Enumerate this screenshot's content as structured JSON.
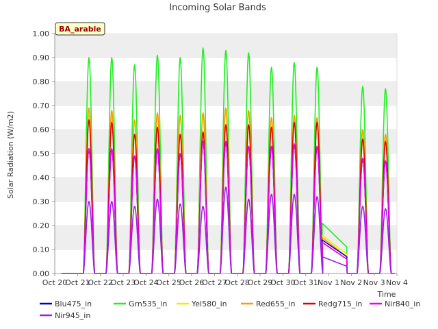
{
  "chart_data": {
    "type": "line",
    "title": "Incoming Solar Bands",
    "ylabel": "Solar Radiation (W/m2)",
    "xlabel": "Time",
    "station_badge": "BA_arable",
    "ylim": [
      0,
      1.0
    ],
    "yticks": [
      "0.00",
      "0.10",
      "0.20",
      "0.30",
      "0.40",
      "0.50",
      "0.60",
      "0.70",
      "0.80",
      "0.90",
      "1.00"
    ],
    "xticks": [
      "Oct 20",
      "Oct 21",
      "Oct 22",
      "Oct 23",
      "Oct 24",
      "Oct 25",
      "Oct 26",
      "Oct 27",
      "Oct 28",
      "Oct 29",
      "Oct 30",
      "Oct 31",
      "Nov 1",
      "Nov 2",
      "Nov 3",
      "Nov 4"
    ],
    "xlim_days": [
      0,
      15
    ],
    "grid": "horizontal bands",
    "legend_placement": "bottom",
    "days": [
      {
        "day": "Oct 21",
        "peak": {
          "Blu475_in": 0.52,
          "Grn535_in": 0.9,
          "Yel580_in": 0.66,
          "Red655_in": 0.69,
          "Redg715_in": 0.64,
          "Nir840_in": 0.52,
          "Nir945_in": 0.3
        }
      },
      {
        "day": "Oct 22",
        "peak": {
          "Blu475_in": 0.52,
          "Grn535_in": 0.9,
          "Yel580_in": 0.66,
          "Red655_in": 0.68,
          "Redg715_in": 0.63,
          "Nir840_in": 0.52,
          "Nir945_in": 0.3
        }
      },
      {
        "day": "Oct 23",
        "peak": {
          "Blu475_in": 0.49,
          "Grn535_in": 0.87,
          "Yel580_in": 0.63,
          "Red655_in": 0.64,
          "Redg715_in": 0.58,
          "Nir840_in": 0.49,
          "Nir945_in": 0.28
        }
      },
      {
        "day": "Oct 24",
        "peak": {
          "Blu475_in": 0.52,
          "Grn535_in": 0.91,
          "Yel580_in": 0.66,
          "Red655_in": 0.67,
          "Redg715_in": 0.61,
          "Nir840_in": 0.52,
          "Nir945_in": 0.31
        }
      },
      {
        "day": "Oct 25",
        "peak": {
          "Blu475_in": 0.5,
          "Grn535_in": 0.9,
          "Yel580_in": 0.65,
          "Red655_in": 0.66,
          "Redg715_in": 0.58,
          "Nir840_in": 0.5,
          "Nir945_in": 0.29
        }
      },
      {
        "day": "Oct 26",
        "peak": {
          "Blu475_in": 0.55,
          "Grn535_in": 0.94,
          "Yel580_in": 0.66,
          "Red655_in": 0.67,
          "Redg715_in": 0.59,
          "Nir840_in": 0.55,
          "Nir945_in": 0.28
        }
      },
      {
        "day": "Oct 27",
        "peak": {
          "Blu475_in": 0.55,
          "Grn535_in": 0.93,
          "Yel580_in": 0.67,
          "Red655_in": 0.69,
          "Redg715_in": 0.62,
          "Nir840_in": 0.55,
          "Nir945_in": 0.36
        }
      },
      {
        "day": "Oct 28",
        "peak": {
          "Blu475_in": 0.53,
          "Grn535_in": 0.92,
          "Yel580_in": 0.67,
          "Red655_in": 0.68,
          "Redg715_in": 0.62,
          "Nir840_in": 0.53,
          "Nir945_in": 0.31
        }
      },
      {
        "day": "Oct 29",
        "peak": {
          "Blu475_in": 0.53,
          "Grn535_in": 0.86,
          "Yel580_in": 0.64,
          "Red655_in": 0.65,
          "Redg715_in": 0.61,
          "Nir840_in": 0.53,
          "Nir945_in": 0.33
        }
      },
      {
        "day": "Oct 30",
        "peak": {
          "Blu475_in": 0.54,
          "Grn535_in": 0.88,
          "Yel580_in": 0.65,
          "Red655_in": 0.66,
          "Redg715_in": 0.63,
          "Nir840_in": 0.54,
          "Nir945_in": 0.33
        }
      },
      {
        "day": "Oct 31",
        "peak": {
          "Blu475_in": 0.53,
          "Grn535_in": 0.86,
          "Yel580_in": 0.64,
          "Red655_in": 0.65,
          "Redg715_in": 0.63,
          "Nir840_in": 0.53,
          "Nir945_in": 0.32
        }
      },
      {
        "day": "Nov 2",
        "peak": {
          "Blu475_in": 0.48,
          "Grn535_in": 0.78,
          "Yel580_in": 0.59,
          "Red655_in": 0.6,
          "Redg715_in": 0.56,
          "Nir840_in": 0.48,
          "Nir945_in": 0.28
        }
      },
      {
        "day": "Nov 3",
        "peak": {
          "Blu475_in": 0.47,
          "Grn535_in": 0.77,
          "Yel580_in": 0.57,
          "Red655_in": 0.58,
          "Redg715_in": 0.55,
          "Nir840_in": 0.47,
          "Nir945_in": 0.27
        }
      }
    ],
    "gap_segment": {
      "from": "Oct 31 18:00",
      "to": "Nov 1 20:00",
      "from_values": {
        "Blu475_in": 0.14,
        "Grn535_in": 0.21,
        "Yel580_in": 0.16,
        "Red655_in": 0.15,
        "Redg715_in": 0.13,
        "Nir840_in": 0.13,
        "Nir945_in": 0.07
      },
      "to_values": {
        "Blu475_in": 0.07,
        "Grn535_in": 0.11,
        "Yel580_in": 0.08,
        "Red655_in": 0.07,
        "Redg715_in": 0.06,
        "Nir840_in": 0.06,
        "Nir945_in": 0.03
      }
    },
    "series": [
      {
        "name": "Blu475_in",
        "color": "#0000cc"
      },
      {
        "name": "Grn535_in",
        "color": "#22ee22"
      },
      {
        "name": "Yel580_in",
        "color": "#eeee00"
      },
      {
        "name": "Red655_in",
        "color": "#ff9900"
      },
      {
        "name": "Redg715_in",
        "color": "#dd0000"
      },
      {
        "name": "Nir840_in",
        "color": "#ee00ee"
      },
      {
        "name": "Nir945_in",
        "color": "#9922dd"
      }
    ]
  }
}
